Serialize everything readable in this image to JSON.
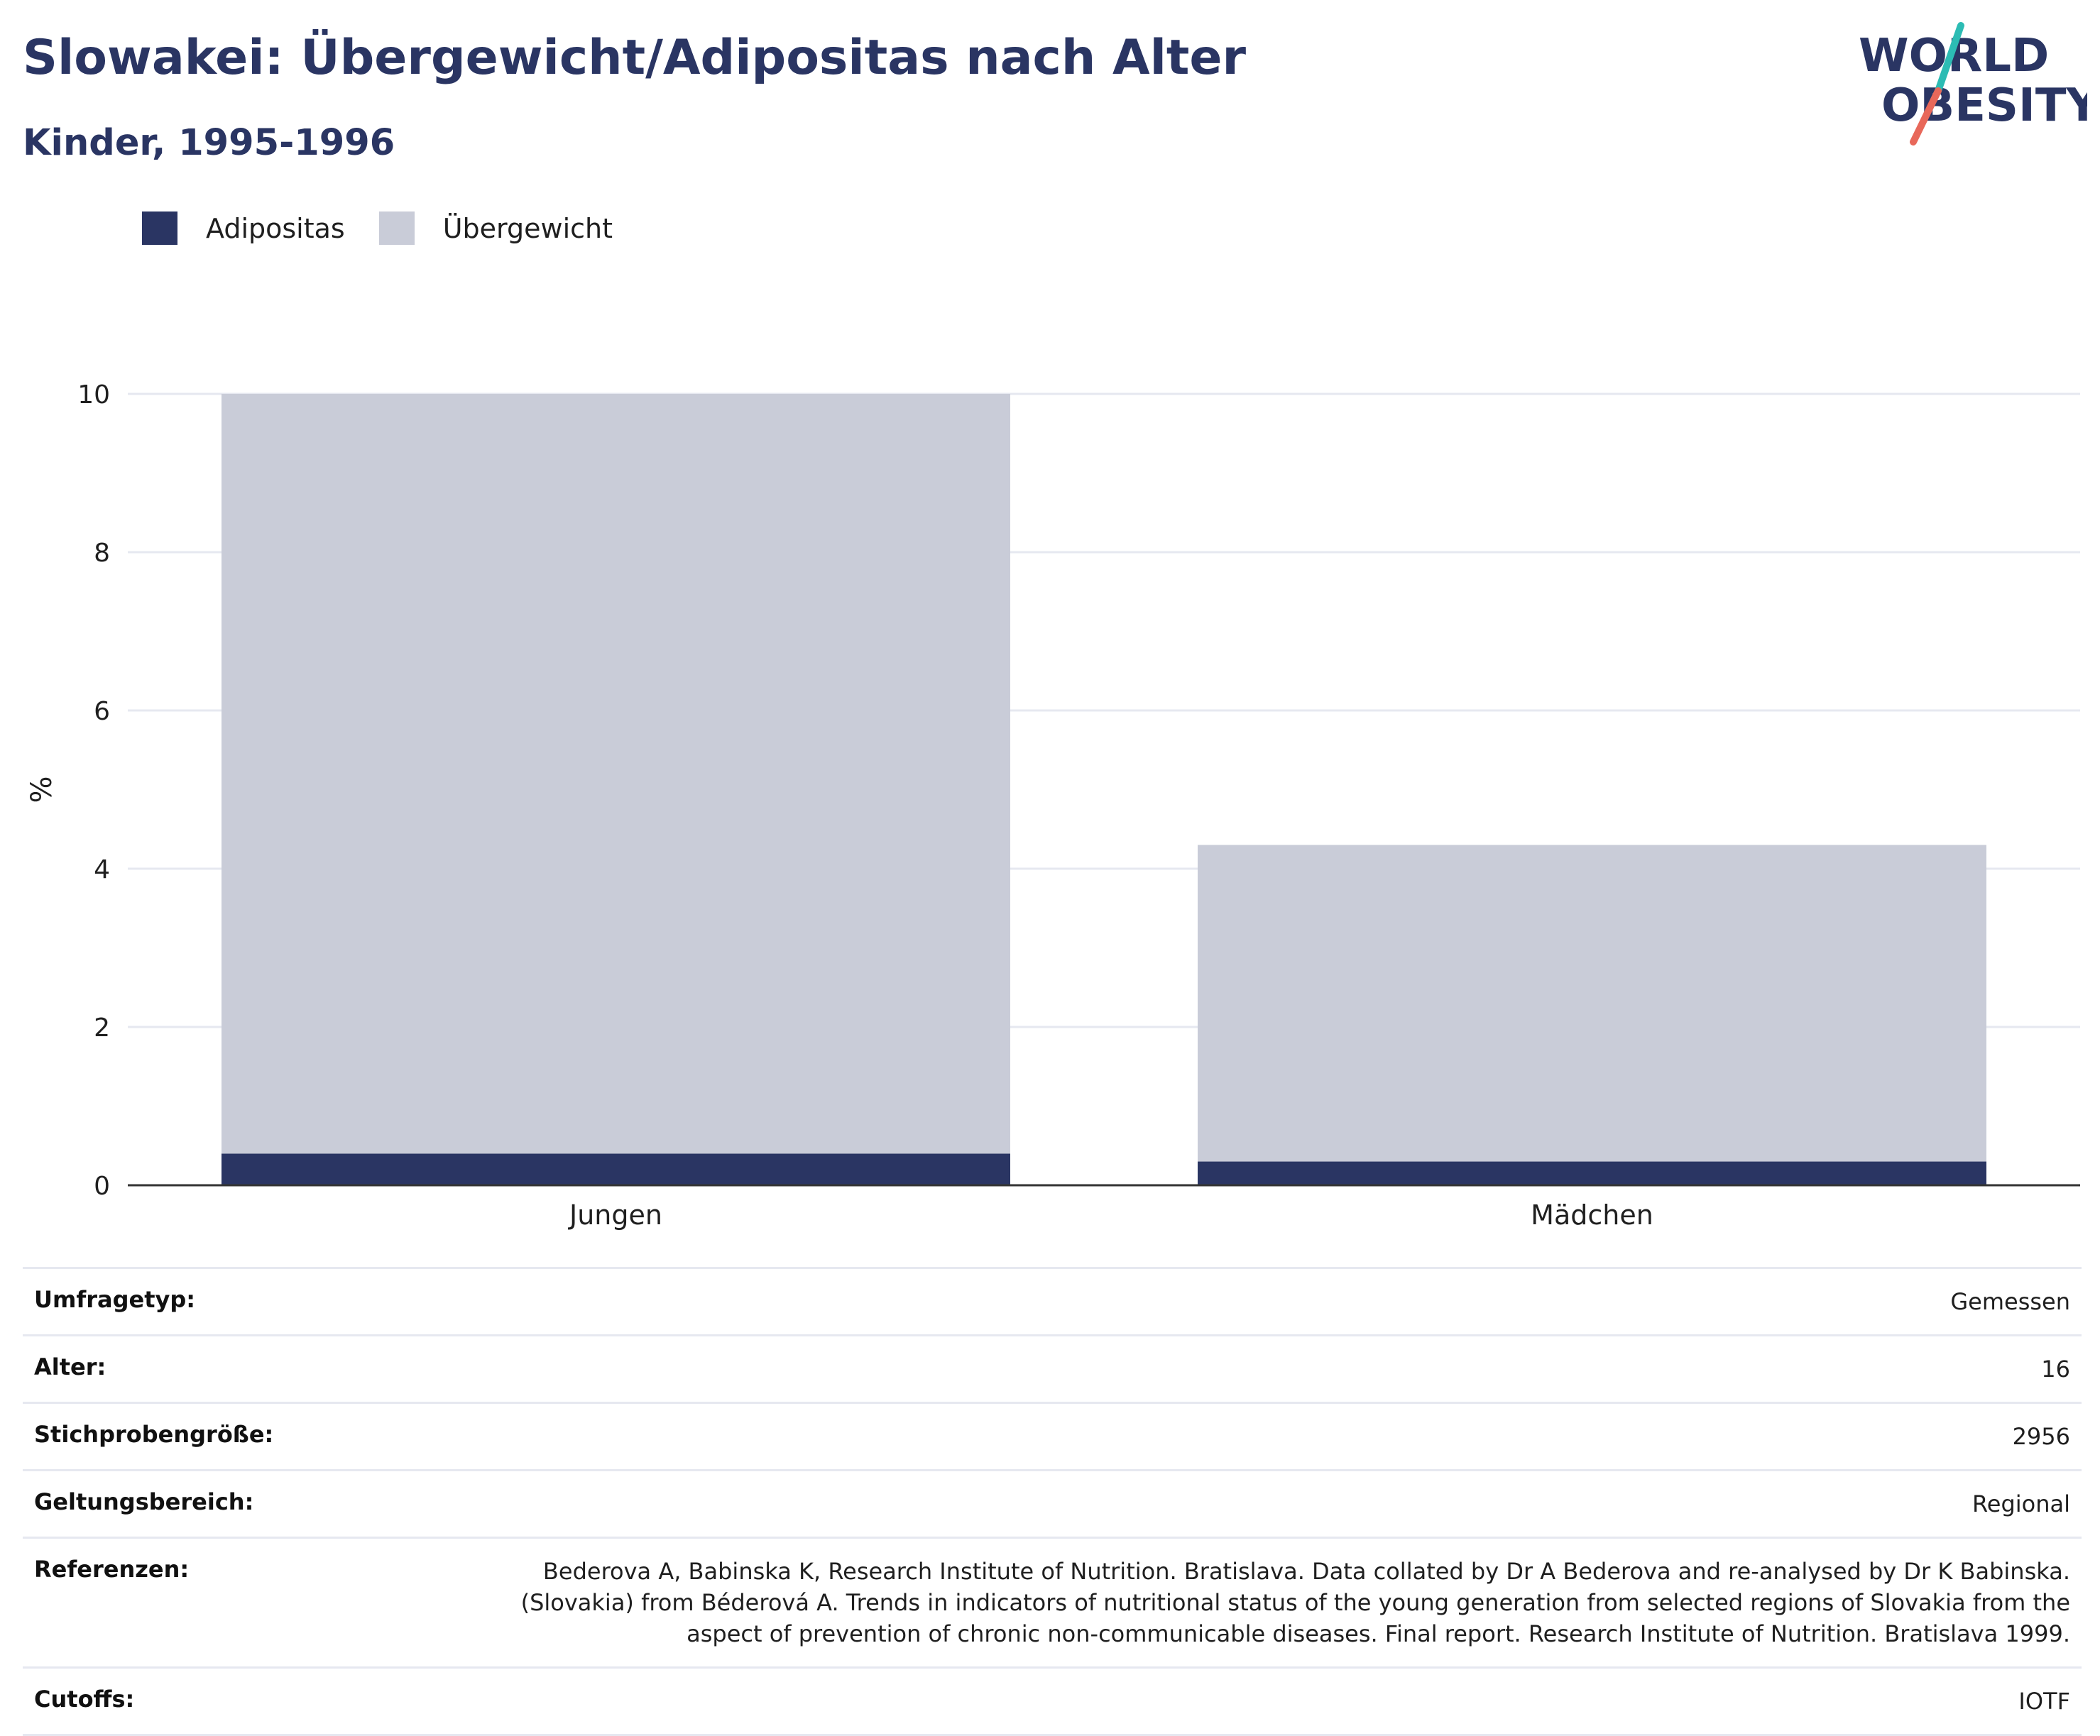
{
  "header": {
    "title": "Slowakei: Übergewicht/Adipositas nach Alter",
    "subtitle": "Kinder, 1995-1996"
  },
  "logo": {
    "line1": "WORLD",
    "line2": "OBESITY",
    "colors": {
      "text": "#2a3563",
      "slash_top": "#2cbcb4",
      "slash_bottom": "#e8685a"
    }
  },
  "colors": {
    "adipositas": "#2a3563",
    "uebergewicht": "#c9ccd8",
    "grid": "#e6e8f0",
    "axis": "#333333"
  },
  "chart_data": {
    "type": "bar",
    "stacked": true,
    "categories": [
      "Jungen",
      "Mädchen"
    ],
    "series": [
      {
        "name": "Adipositas",
        "values": [
          0.4,
          0.3
        ]
      },
      {
        "name": "Übergewicht",
        "values": [
          9.6,
          4.0
        ]
      }
    ],
    "ylabel": "%",
    "ylim": [
      0,
      10
    ],
    "yticks": [
      0,
      2,
      4,
      6,
      8,
      10
    ],
    "grid": true,
    "legend": "top-left"
  },
  "meta": [
    {
      "key": "Umfragetyp:",
      "value": "Gemessen"
    },
    {
      "key": "Alter:",
      "value": "16"
    },
    {
      "key": "Stichprobengröße:",
      "value": "2956"
    },
    {
      "key": "Geltungsbereich:",
      "value": "Regional"
    },
    {
      "key": "Referenzen:",
      "value_lines": [
        "Bederova A, Babinska K, Research Institute of Nutrition. Bratislava. Data collated by Dr A Bederova and re-analysed by Dr K Babinska.",
        "(Slovakia) from Béderová A. Trends in indicators of nutritional status of the young generation from selected regions of Slovakia from the",
        "aspect of prevention of chronic non-communicable diseases. Final report. Research Institute of Nutrition. Bratislava 1999."
      ]
    },
    {
      "key": "Cutoffs:",
      "value": "IOTF"
    }
  ]
}
